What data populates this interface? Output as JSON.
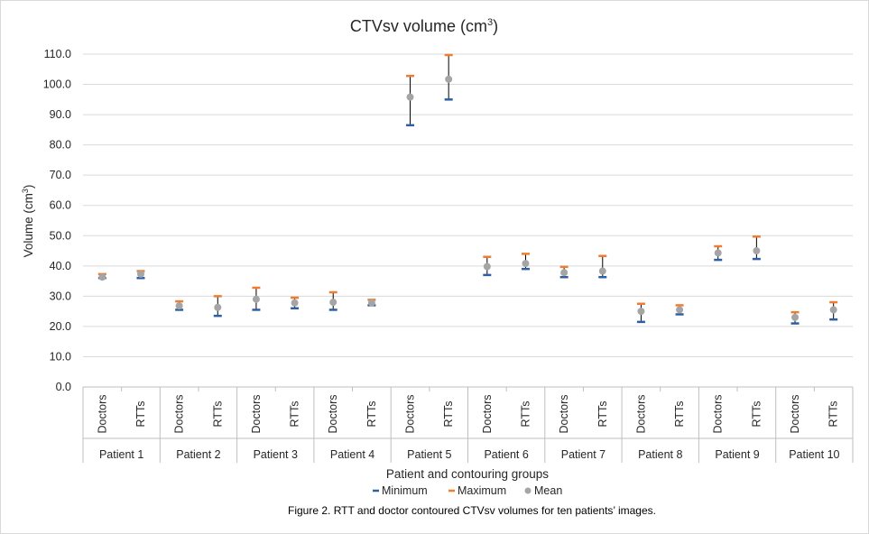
{
  "chart_data": {
    "type": "scatter",
    "title": "CTVsv volume (cm",
    "title_sup": "3",
    "title_end": ")",
    "xlabel": "Patient and contouring groups",
    "ylabel": "Volume (cm",
    "ylabel_sup": "3",
    "ylabel_end": ")",
    "ylim": [
      0,
      110
    ],
    "yticks": [
      "0.0",
      "10.0",
      "20.0",
      "30.0",
      "40.0",
      "50.0",
      "60.0",
      "70.0",
      "80.0",
      "90.0",
      "100.0",
      "110.0"
    ],
    "grid": true,
    "legend_position": "bottom",
    "groups": [
      "Patient 1",
      "Patient 2",
      "Patient 3",
      "Patient 4",
      "Patient 5",
      "Patient 6",
      "Patient 7",
      "Patient 8",
      "Patient 9",
      "Patient 10"
    ],
    "subcategories": [
      "Doctors",
      "RTTs"
    ],
    "series": [
      {
        "name": "Minimum",
        "color": "#2e5fa3",
        "values": [
          36.0,
          36.0,
          25.5,
          23.5,
          25.5,
          26.0,
          25.5,
          27.0,
          86.5,
          95.0,
          37.0,
          39.0,
          36.3,
          36.3,
          21.5,
          24.0,
          42.0,
          42.3,
          21.0,
          22.3
        ]
      },
      {
        "name": "Maximum",
        "color": "#ed7d31",
        "values": [
          37.3,
          38.3,
          28.3,
          30.0,
          32.8,
          29.5,
          31.3,
          28.8,
          102.8,
          109.7,
          43.0,
          44.0,
          39.7,
          43.3,
          27.5,
          27.0,
          46.5,
          49.7,
          24.7,
          28.0
        ]
      },
      {
        "name": "Mean",
        "color": "#a5a5a5",
        "values": [
          36.3,
          37.3,
          26.8,
          26.3,
          29.0,
          27.8,
          28.0,
          27.8,
          95.8,
          101.7,
          39.8,
          40.8,
          37.8,
          38.3,
          25.0,
          25.5,
          44.3,
          45.0,
          23.0,
          25.5
        ]
      }
    ]
  },
  "caption": "Figure 2. RTT and doctor contoured CTVsv volumes for ten patients’ images."
}
